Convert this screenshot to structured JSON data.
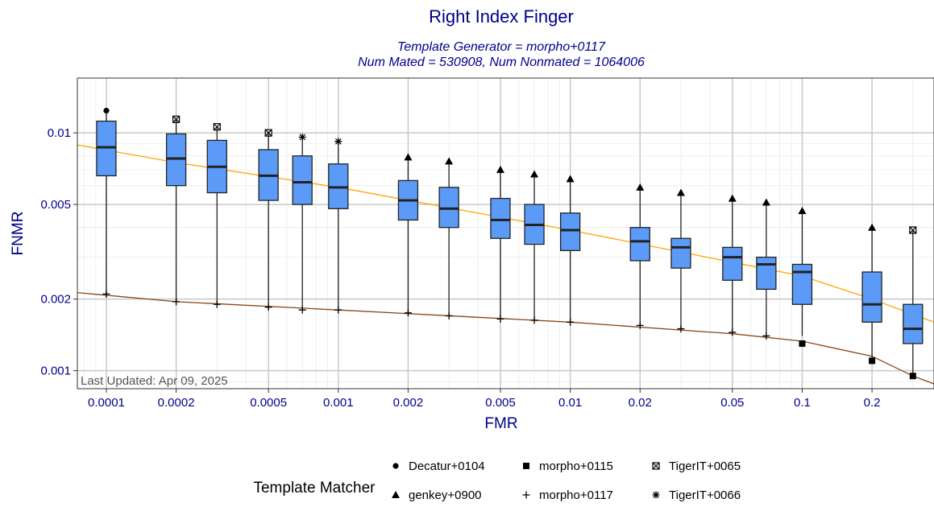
{
  "chart_data": {
    "type": "box",
    "title": "Right Index Finger",
    "subtitle_lines": [
      "Template Generator = morpho+0117",
      "Num Mated = 530908, Num Nonmated = 1064006"
    ],
    "xlabel": "FMR",
    "ylabel": "FNMR",
    "x_scale": "log",
    "y_scale": "log",
    "xlim": [
      7.5e-05,
      0.37
    ],
    "ylim": [
      0.00084,
      0.017
    ],
    "x_ticks": [
      {
        "value": 0.0001,
        "label": "0.0001"
      },
      {
        "value": 0.0002,
        "label": "0.0002"
      },
      {
        "value": 0.0005,
        "label": "0.0005"
      },
      {
        "value": 0.001,
        "label": "0.001"
      },
      {
        "value": 0.002,
        "label": "0.002"
      },
      {
        "value": 0.005,
        "label": "0.005"
      },
      {
        "value": 0.01,
        "label": "0.01"
      },
      {
        "value": 0.02,
        "label": "0.02"
      },
      {
        "value": 0.05,
        "label": "0.05"
      },
      {
        "value": 0.1,
        "label": "0.1"
      },
      {
        "value": 0.2,
        "label": "0.2"
      }
    ],
    "y_ticks": [
      {
        "value": 0.001,
        "label": "0.001"
      },
      {
        "value": 0.002,
        "label": "0.002"
      },
      {
        "value": 0.005,
        "label": "0.005"
      },
      {
        "value": 0.01,
        "label": "0.01"
      }
    ],
    "grid": true,
    "box_color": "#5b9bf7",
    "boxes": [
      {
        "fmr": 0.0001,
        "min": 0.0021,
        "q1": 0.0066,
        "median": 0.0087,
        "q3": 0.0112,
        "whisker_max_marker": 0.0124,
        "whisker_min_marker": 0.0021,
        "top_matcher": "Decatur+0104",
        "bottom_matcher": "morpho+0117"
      },
      {
        "fmr": 0.0002,
        "min": 0.00195,
        "q1": 0.006,
        "median": 0.0078,
        "q3": 0.0099,
        "whisker_max_marker": 0.0114,
        "whisker_min_marker": 0.00195,
        "top_matcher": "TigerIT+0065",
        "bottom_matcher": "morpho+0117"
      },
      {
        "fmr": 0.0003,
        "min": 0.0019,
        "q1": 0.0056,
        "median": 0.0072,
        "q3": 0.0093,
        "whisker_max_marker": 0.0106,
        "whisker_min_marker": 0.0019,
        "top_matcher": "TigerIT+0065",
        "bottom_matcher": "morpho+0117"
      },
      {
        "fmr": 0.0005,
        "min": 0.00185,
        "q1": 0.0052,
        "median": 0.0066,
        "q3": 0.0085,
        "whisker_max_marker": 0.01,
        "whisker_min_marker": 0.00185,
        "top_matcher": "TigerIT+0065",
        "bottom_matcher": "morpho+0117"
      },
      {
        "fmr": 0.0007,
        "min": 0.0018,
        "q1": 0.005,
        "median": 0.0062,
        "q3": 0.008,
        "whisker_max_marker": 0.0096,
        "whisker_min_marker": 0.0018,
        "top_matcher": "TigerIT+0066",
        "bottom_matcher": "morpho+0117"
      },
      {
        "fmr": 0.001,
        "min": 0.0018,
        "q1": 0.0048,
        "median": 0.0059,
        "q3": 0.0074,
        "whisker_max_marker": 0.0092,
        "whisker_min_marker": 0.0018,
        "top_matcher": "TigerIT+0066",
        "bottom_matcher": "morpho+0117"
      },
      {
        "fmr": 0.002,
        "min": 0.00175,
        "q1": 0.0043,
        "median": 0.0052,
        "q3": 0.0063,
        "whisker_max_marker": 0.0079,
        "whisker_min_marker": 0.00175,
        "top_matcher": "genkey+0900",
        "bottom_matcher": "morpho+0117"
      },
      {
        "fmr": 0.003,
        "min": 0.0017,
        "q1": 0.004,
        "median": 0.0048,
        "q3": 0.0059,
        "whisker_max_marker": 0.0076,
        "whisker_min_marker": 0.0017,
        "top_matcher": "genkey+0900",
        "bottom_matcher": "morpho+0117"
      },
      {
        "fmr": 0.005,
        "min": 0.00165,
        "q1": 0.0036,
        "median": 0.0043,
        "q3": 0.0053,
        "whisker_max_marker": 0.007,
        "whisker_min_marker": 0.00165,
        "top_matcher": "genkey+0900",
        "bottom_matcher": "morpho+0117"
      },
      {
        "fmr": 0.007,
        "min": 0.00163,
        "q1": 0.0034,
        "median": 0.0041,
        "q3": 0.005,
        "whisker_max_marker": 0.0067,
        "whisker_min_marker": 0.00163,
        "top_matcher": "genkey+0900",
        "bottom_matcher": "morpho+0117"
      },
      {
        "fmr": 0.01,
        "min": 0.0016,
        "q1": 0.0032,
        "median": 0.0039,
        "q3": 0.0046,
        "whisker_max_marker": 0.0064,
        "whisker_min_marker": 0.0016,
        "top_matcher": "genkey+0900",
        "bottom_matcher": "morpho+0117"
      },
      {
        "fmr": 0.02,
        "min": 0.00155,
        "q1": 0.0029,
        "median": 0.0035,
        "q3": 0.004,
        "whisker_max_marker": 0.0059,
        "whisker_min_marker": 0.00155,
        "top_matcher": "genkey+0900",
        "bottom_matcher": "morpho+0117"
      },
      {
        "fmr": 0.03,
        "min": 0.0015,
        "q1": 0.0027,
        "median": 0.0033,
        "q3": 0.0036,
        "whisker_max_marker": 0.0056,
        "whisker_min_marker": 0.0015,
        "top_matcher": "genkey+0900",
        "bottom_matcher": "morpho+0117"
      },
      {
        "fmr": 0.05,
        "min": 0.00145,
        "q1": 0.0024,
        "median": 0.003,
        "q3": 0.0033,
        "whisker_max_marker": 0.0053,
        "whisker_min_marker": 0.00145,
        "top_matcher": "genkey+0900",
        "bottom_matcher": "morpho+0117"
      },
      {
        "fmr": 0.07,
        "min": 0.0014,
        "q1": 0.0022,
        "median": 0.0028,
        "q3": 0.003,
        "whisker_max_marker": 0.0051,
        "whisker_min_marker": 0.0014,
        "top_matcher": "genkey+0900",
        "bottom_matcher": "morpho+0117"
      },
      {
        "fmr": 0.1,
        "min": 0.0014,
        "q1": 0.0019,
        "median": 0.0026,
        "q3": 0.0028,
        "whisker_max_marker": 0.0047,
        "whisker_min_marker": 0.0013,
        "top_matcher": "genkey+0900",
        "bottom_matcher": "morpho+0115"
      },
      {
        "fmr": 0.2,
        "min": 0.0011,
        "q1": 0.0016,
        "median": 0.0019,
        "q3": 0.0026,
        "whisker_max_marker": 0.004,
        "whisker_min_marker": 0.0011,
        "top_matcher": "genkey+0900",
        "bottom_matcher": "morpho+0115"
      },
      {
        "fmr": 0.3,
        "min": 0.00095,
        "q1": 0.0013,
        "median": 0.0015,
        "q3": 0.0019,
        "whisker_max_marker": 0.0039,
        "whisker_min_marker": 0.00095,
        "top_matcher": "TigerIT+0065",
        "bottom_matcher": "morpho+0115"
      }
    ],
    "lines": [
      {
        "color": "#ffa500",
        "x": [
          7.5e-05,
          0.0002,
          0.001,
          0.01,
          0.1,
          0.2,
          0.37
        ],
        "y": [
          0.0089,
          0.0075,
          0.0059,
          0.0039,
          0.0025,
          0.002,
          0.0016
        ]
      },
      {
        "color": "#8b4513",
        "x": [
          7.5e-05,
          0.0002,
          0.001,
          0.01,
          0.05,
          0.1,
          0.2,
          0.3,
          0.37
        ],
        "y": [
          0.00213,
          0.00195,
          0.0018,
          0.0016,
          0.00143,
          0.00133,
          0.00115,
          0.00095,
          0.00088
        ]
      }
    ],
    "legend": {
      "title": "Template Matcher",
      "position": "bottom",
      "items": [
        {
          "label": "Decatur+0104",
          "shape": "dot"
        },
        {
          "label": "morpho+0115",
          "shape": "square"
        },
        {
          "label": "TigerIT+0065",
          "shape": "boxx"
        },
        {
          "label": "genkey+0900",
          "shape": "triangle"
        },
        {
          "label": "morpho+0117",
          "shape": "plus"
        },
        {
          "label": "TigerIT+0066",
          "shape": "asterisk"
        }
      ]
    },
    "footnote": "Last Updated: Apr 09, 2025"
  }
}
